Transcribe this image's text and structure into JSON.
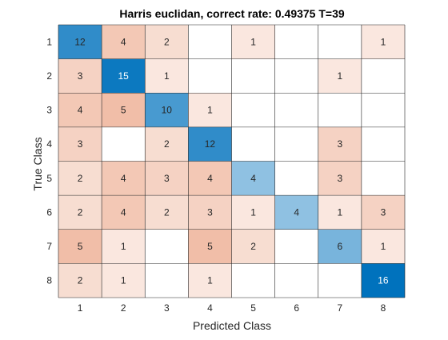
{
  "chart_data": {
    "type": "heatmap",
    "title": "Harris euclidan, correct rate: 0.49375 T=39",
    "xlabel": "Predicted Class",
    "ylabel": "True Class",
    "x_categories": [
      "1",
      "2",
      "3",
      "4",
      "5",
      "6",
      "7",
      "8"
    ],
    "y_categories": [
      "1",
      "2",
      "3",
      "4",
      "5",
      "6",
      "7",
      "8"
    ],
    "matrix": [
      [
        12,
        4,
        2,
        null,
        1,
        null,
        null,
        1
      ],
      [
        3,
        15,
        1,
        null,
        null,
        null,
        1,
        null
      ],
      [
        4,
        5,
        10,
        1,
        null,
        null,
        null,
        null
      ],
      [
        3,
        null,
        2,
        12,
        null,
        null,
        3,
        null
      ],
      [
        2,
        4,
        3,
        4,
        4,
        null,
        3,
        null
      ],
      [
        2,
        4,
        2,
        3,
        1,
        4,
        1,
        3
      ],
      [
        5,
        1,
        null,
        5,
        2,
        null,
        6,
        1
      ],
      [
        2,
        1,
        null,
        1,
        null,
        null,
        null,
        16
      ]
    ],
    "diagonal_color": "#0072bd",
    "offdiagonal_color": "#d95319",
    "grid": true
  }
}
